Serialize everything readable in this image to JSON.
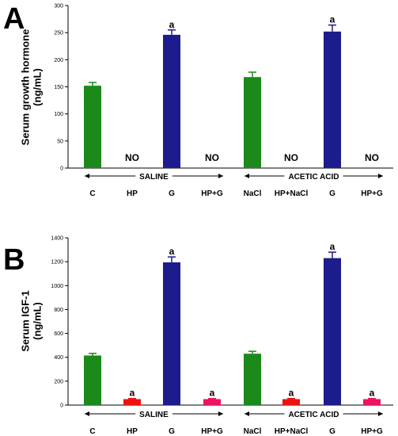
{
  "chart_data": [
    {
      "panel_label": "A",
      "type": "bar",
      "ylabel": "Serum growth hormone\n(ng/mL)",
      "ylim": [
        0,
        300
      ],
      "yticks": [
        0,
        50,
        100,
        150,
        200,
        250,
        300
      ],
      "categories": [
        "C",
        "HP",
        "G",
        "HP+G",
        "NaCl",
        "HP+NaCl",
        "G",
        "HP+G"
      ],
      "values": [
        152,
        null,
        246,
        null,
        168,
        null,
        252,
        null
      ],
      "errors": [
        6,
        null,
        9,
        null,
        9,
        null,
        12,
        null
      ],
      "colors": [
        "#1b8a1b",
        null,
        "#1c1c8c",
        null,
        "#1b8a1b",
        null,
        "#1c1c8c",
        null
      ],
      "value_labels": [
        "",
        "NO",
        "a",
        "NO",
        "",
        "NO",
        "a",
        "NO"
      ],
      "groups": [
        {
          "label": "SALINE",
          "start": 0,
          "end": 3
        },
        {
          "label": "ACETIC ACID",
          "start": 4,
          "end": 7
        }
      ],
      "grid": false,
      "legend": "none"
    },
    {
      "panel_label": "B",
      "type": "bar",
      "ylabel": "Serum IGF-1\n(ng/mL)",
      "ylim": [
        0,
        1400
      ],
      "yticks": [
        0,
        200,
        400,
        600,
        800,
        1000,
        1200,
        1400
      ],
      "categories": [
        "C",
        "HP",
        "G",
        "HP+G",
        "NaCl",
        "HP+NaCl",
        "G",
        "HP+G"
      ],
      "values": [
        415,
        50,
        1195,
        50,
        430,
        50,
        1230,
        50
      ],
      "errors": [
        18,
        5,
        45,
        5,
        20,
        5,
        50,
        5
      ],
      "colors": [
        "#1b8a1b",
        "#ee1111",
        "#1c1c8c",
        "#ee1166",
        "#1b8a1b",
        "#ee1111",
        "#1c1c8c",
        "#ee1166"
      ],
      "value_labels": [
        "",
        "a",
        "a",
        "a",
        "",
        "a",
        "a",
        "a"
      ],
      "groups": [
        {
          "label": "SALINE",
          "start": 0,
          "end": 3
        },
        {
          "label": "ACETIC ACID",
          "start": 4,
          "end": 7
        }
      ],
      "grid": false,
      "legend": "none"
    }
  ]
}
